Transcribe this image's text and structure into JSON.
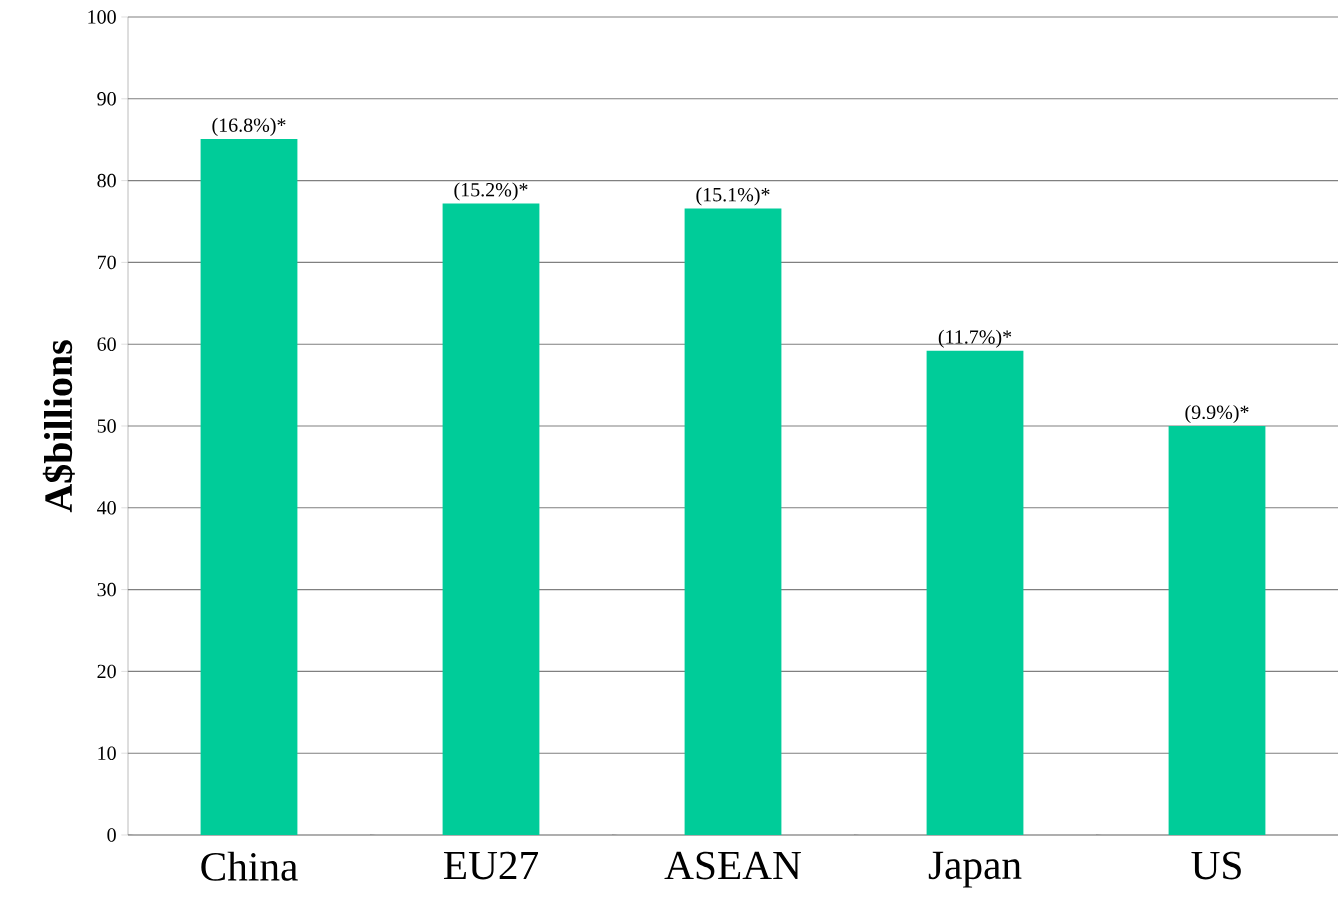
{
  "chart_data": {
    "type": "bar",
    "ylabel": "A$billions",
    "categories": [
      "China",
      "EU27",
      "ASEAN",
      "Japan",
      "US"
    ],
    "values": [
      85.1,
      77.2,
      76.6,
      59.2,
      50.0
    ],
    "annotations": [
      {
        "text": "(16.8%)*",
        "x": "China",
        "y": 85.1
      },
      {
        "text": "(15.2%)*",
        "x": "EU27",
        "y": 77.2
      },
      {
        "text": "(15.1%)*",
        "x": "ASEAN",
        "y": 76.6
      },
      {
        "text": "(11.7%)*",
        "x": "Japan",
        "y": 59.2
      },
      {
        "text": "(9.9%)*",
        "x": "US",
        "y": 50.0
      }
    ],
    "color": "#00cc99",
    "ylim": [
      0,
      100
    ],
    "yticks": [
      0,
      10,
      20,
      30,
      40,
      50,
      60,
      70,
      80,
      90,
      100
    ],
    "grid": "y"
  }
}
